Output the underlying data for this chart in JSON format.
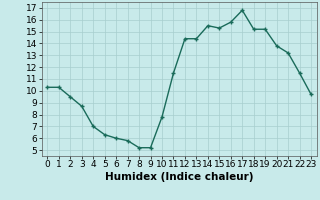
{
  "x": [
    0,
    1,
    2,
    3,
    4,
    5,
    6,
    7,
    8,
    9,
    10,
    11,
    12,
    13,
    14,
    15,
    16,
    17,
    18,
    19,
    20,
    21,
    22,
    23
  ],
  "y": [
    10.3,
    10.3,
    9.5,
    8.7,
    7.0,
    6.3,
    6.0,
    5.8,
    5.2,
    5.2,
    7.8,
    11.5,
    14.4,
    14.4,
    15.5,
    15.3,
    15.8,
    16.8,
    15.2,
    15.2,
    13.8,
    13.2,
    11.5,
    9.7
  ],
  "line_color": "#1a6b5a",
  "marker": "+",
  "marker_size": 3.5,
  "linewidth": 1.0,
  "background_color": "#c8eaea",
  "grid_color": "#a8cece",
  "xlabel": "Humidex (Indice chaleur)",
  "xlabel_fontsize": 7.5,
  "tick_fontsize": 6.5,
  "xlim": [
    -0.5,
    23.5
  ],
  "ylim": [
    4.5,
    17.5
  ],
  "yticks": [
    5,
    6,
    7,
    8,
    9,
    10,
    11,
    12,
    13,
    14,
    15,
    16,
    17
  ],
  "xticks": [
    0,
    1,
    2,
    3,
    4,
    5,
    6,
    7,
    8,
    9,
    10,
    11,
    12,
    13,
    14,
    15,
    16,
    17,
    18,
    19,
    20,
    21,
    22,
    23
  ]
}
